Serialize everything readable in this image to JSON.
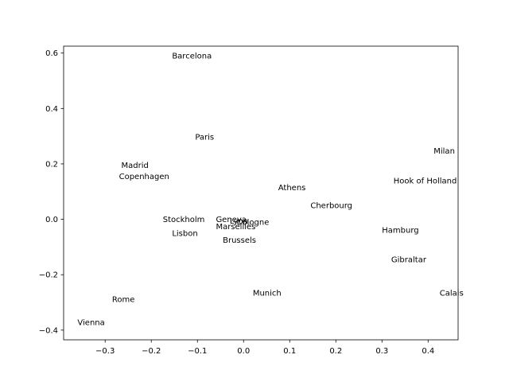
{
  "chart_data": {
    "type": "scatter",
    "title": "",
    "xlabel": "",
    "ylabel": "",
    "xlim": [
      -0.39,
      0.465
    ],
    "ylim": [
      -0.435,
      0.625
    ],
    "xticks": [
      -0.3,
      -0.2,
      -0.1,
      0.0,
      0.1,
      0.2,
      0.3,
      0.4
    ],
    "xtick_labels": [
      "−0.3",
      "−0.2",
      "−0.1",
      "0.0",
      "0.1",
      "0.2",
      "0.3",
      "0.4"
    ],
    "yticks": [
      -0.4,
      -0.2,
      0.0,
      0.2,
      0.4,
      0.6
    ],
    "ytick_labels": [
      "−0.4",
      "−0.2",
      "0.0",
      "0.2",
      "0.4",
      "0.6"
    ],
    "grid": false,
    "points": [
      {
        "label": "Barcelona",
        "x": -0.155,
        "y": 0.59
      },
      {
        "label": "Paris",
        "x": -0.105,
        "y": 0.298
      },
      {
        "label": "Milan",
        "x": 0.412,
        "y": 0.247
      },
      {
        "label": "Madrid",
        "x": -0.265,
        "y": 0.195
      },
      {
        "label": "Copenhagen",
        "x": -0.27,
        "y": 0.155
      },
      {
        "label": "Hook of Holland",
        "x": 0.325,
        "y": 0.14
      },
      {
        "label": "Athens",
        "x": 0.075,
        "y": 0.115
      },
      {
        "label": "Cherbourg",
        "x": 0.145,
        "y": 0.05
      },
      {
        "label": "Stockholm",
        "x": -0.175,
        "y": 0.0
      },
      {
        "label": "Geneva",
        "x": -0.06,
        "y": 0.0
      },
      {
        "label": "Lyon",
        "x": -0.03,
        "y": -0.005
      },
      {
        "label": "Cologne",
        "x": -0.015,
        "y": -0.01
      },
      {
        "label": "Marseilles",
        "x": -0.06,
        "y": -0.025
      },
      {
        "label": "Hamburg",
        "x": 0.3,
        "y": -0.038
      },
      {
        "label": "Lisbon",
        "x": -0.155,
        "y": -0.05
      },
      {
        "label": "Brussels",
        "x": -0.045,
        "y": -0.075
      },
      {
        "label": "Gibraltar",
        "x": 0.32,
        "y": -0.145
      },
      {
        "label": "Munich",
        "x": 0.02,
        "y": -0.265
      },
      {
        "label": "Calais",
        "x": 0.425,
        "y": -0.265
      },
      {
        "label": "Rome",
        "x": -0.285,
        "y": -0.288
      },
      {
        "label": "Vienna",
        "x": -0.36,
        "y": -0.372
      }
    ]
  }
}
